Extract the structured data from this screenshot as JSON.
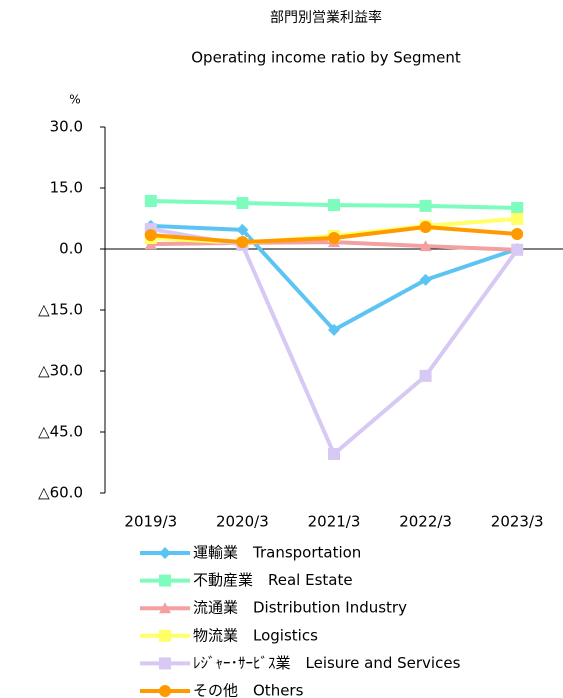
{
  "chart_data": {
    "type": "line",
    "title": "部門別営業利益率",
    "subtitle": "Operating income ratio by Segment",
    "y_unit": "%",
    "categories": [
      "2019/3",
      "2020/3",
      "2021/3",
      "2022/3",
      "2023/3"
    ],
    "ylim": [
      -60,
      30
    ],
    "yticks": [
      {
        "value": 30,
        "label": "30.0"
      },
      {
        "value": 15,
        "label": "15.0"
      },
      {
        "value": 0,
        "label": "0.0"
      },
      {
        "value": -15,
        "label": "△15.0"
      },
      {
        "value": -30,
        "label": "△30.0"
      },
      {
        "value": -45,
        "label": "△45.0"
      },
      {
        "value": -60,
        "label": "△60.0"
      }
    ],
    "series": [
      {
        "name": "運輸業　Transportation",
        "color": "#5bc4f3",
        "marker": "diamond",
        "values": [
          5.7,
          4.7,
          -19.9,
          -7.6,
          0
        ]
      },
      {
        "name": "不動産業　Real Estate",
        "color": "#7dfcbd",
        "marker": "square",
        "values": [
          11.8,
          11.3,
          10.8,
          10.6,
          10.1
        ]
      },
      {
        "name": "流通業　Distribution Industry",
        "color": "#f4a0a0",
        "marker": "triangle",
        "values": [
          1.2,
          1.5,
          1.7,
          0.7,
          -0.2
        ]
      },
      {
        "name": "物流業　Logistics",
        "color": "#ffff66",
        "marker": "square",
        "values": [
          2.7,
          1.5,
          3.2,
          5.7,
          7.4
        ]
      },
      {
        "name": "ﾚｼﾞｬｰ･ｻｰﾋﾞｽ業　Leisure and Services",
        "color": "#d8c8f4",
        "marker": "square",
        "values": [
          4.9,
          1.0,
          -50.4,
          -31.2,
          -0.2
        ]
      },
      {
        "name": "その他　Others",
        "color": "#ff9900",
        "marker": "circle",
        "values": [
          3.4,
          1.7,
          2.7,
          5.4,
          3.7
        ]
      }
    ]
  }
}
